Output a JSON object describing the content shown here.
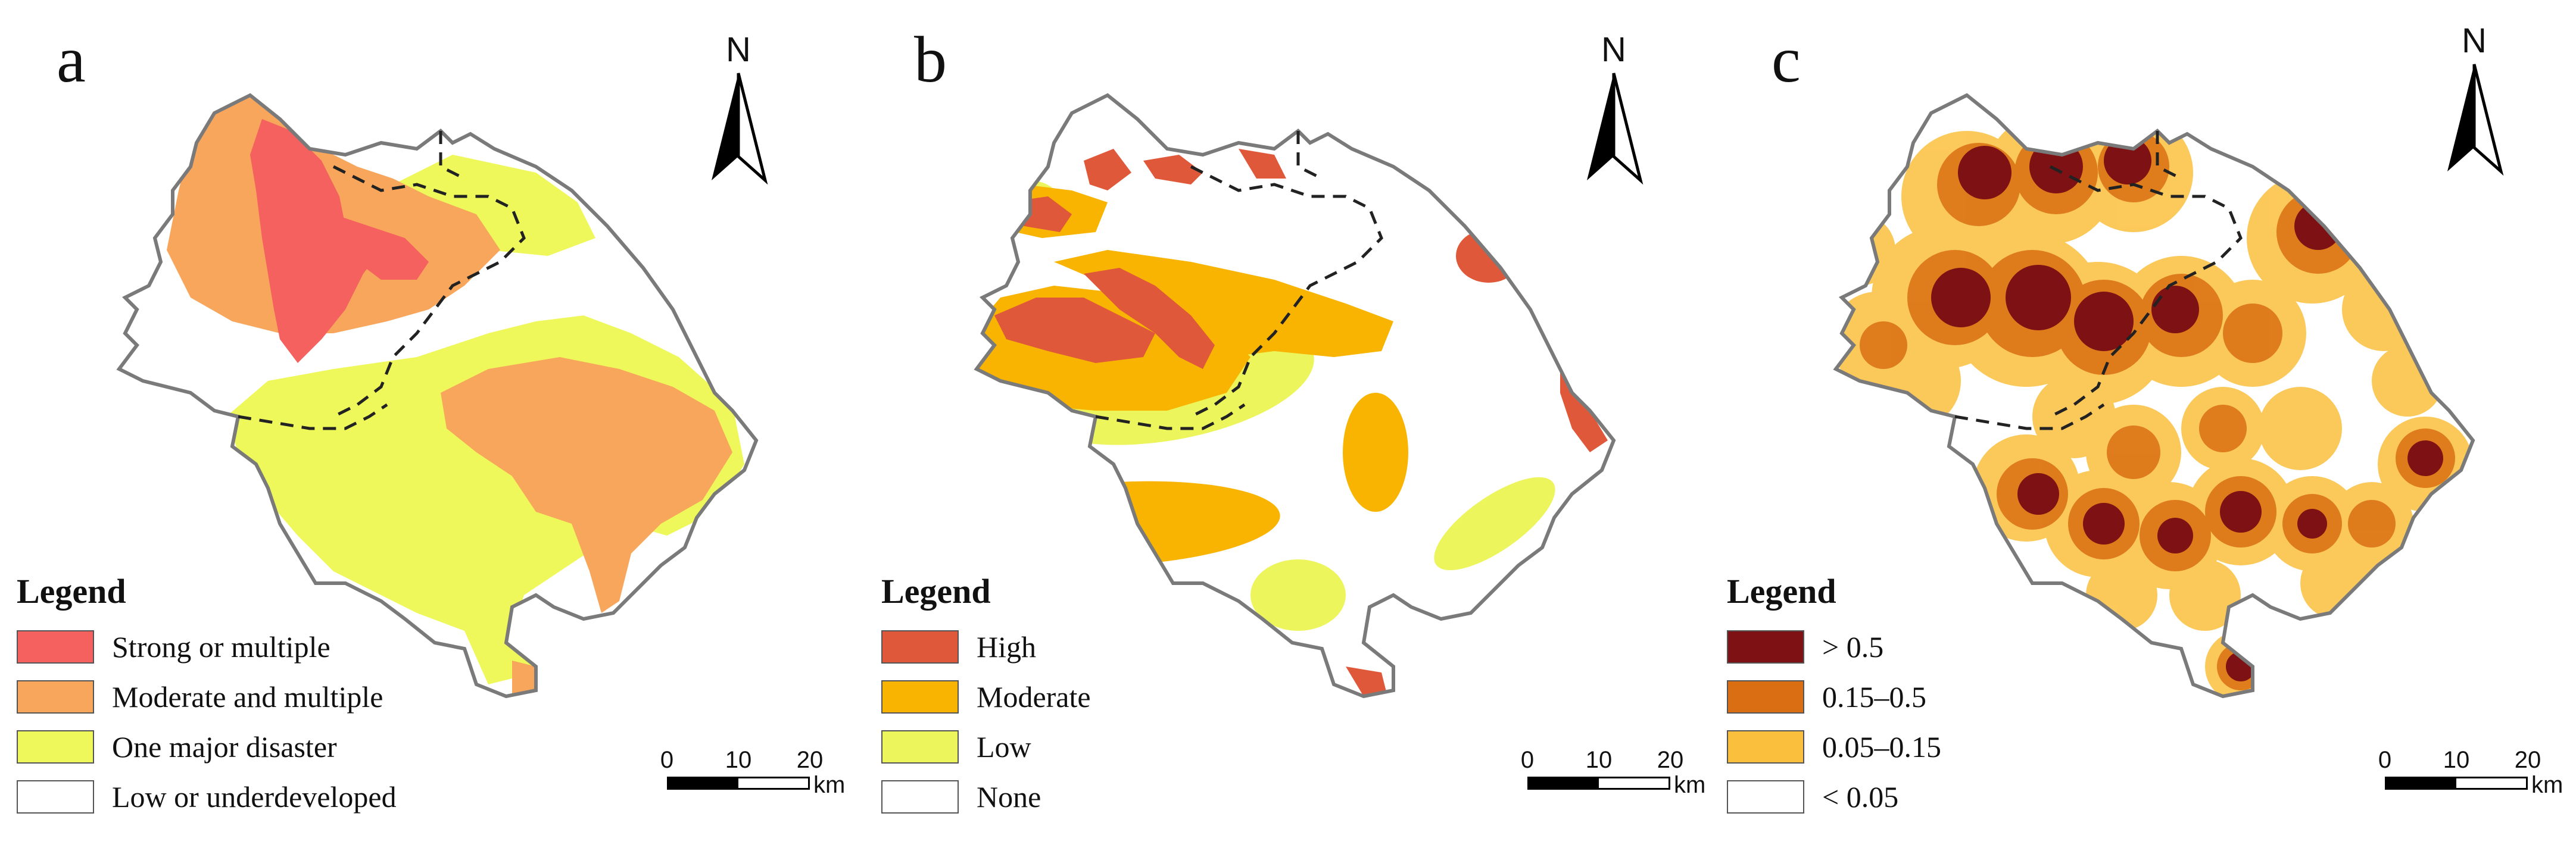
{
  "colors": {
    "boundary": "#7a7a7a",
    "internal_boundary": "#222222"
  },
  "compass": {
    "label": "N"
  },
  "scale_bar": {
    "ticks": [
      "0",
      "10",
      "20"
    ],
    "unit": "km"
  },
  "panels": [
    {
      "letter": "a",
      "legend": {
        "title": "Legend",
        "items": [
          {
            "label": "Strong or multiple",
            "color": "#f4615f"
          },
          {
            "label": "Moderate and multiple",
            "color": "#f7a65c"
          },
          {
            "label": "One major disaster",
            "color": "#eef85a"
          },
          {
            "label": "Low or underdeveloped",
            "color": "#ffffff"
          }
        ]
      }
    },
    {
      "letter": "b",
      "legend": {
        "title": "Legend",
        "items": [
          {
            "label": "High",
            "color": "#e0583a"
          },
          {
            "label": "Moderate",
            "color": "#f8b400"
          },
          {
            "label": "Low",
            "color": "#ecf55c"
          },
          {
            "label": "None",
            "color": "#ffffff"
          }
        ]
      }
    },
    {
      "letter": "c",
      "legend": {
        "title": "Legend",
        "items": [
          {
            "label": "> 0.5",
            "color": "#7d1113"
          },
          {
            "label": "0.15–0.5",
            "color": "#d96f12"
          },
          {
            "label": "0.05–0.15",
            "color": "#fbbf3e"
          },
          {
            "label": "< 0.05",
            "color": "#ffffff"
          }
        ]
      }
    }
  ]
}
